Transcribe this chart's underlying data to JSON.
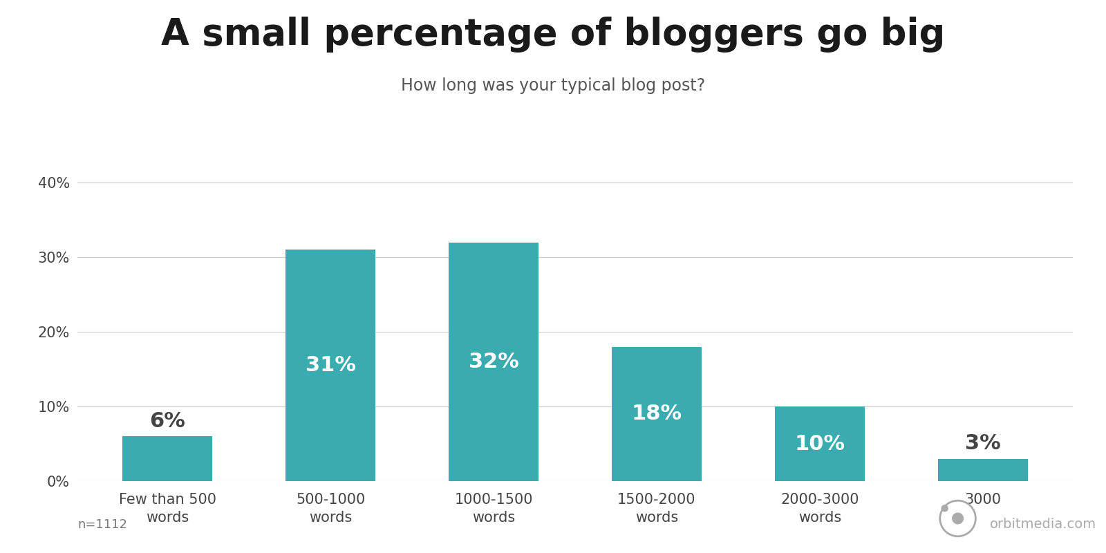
{
  "title": "A small percentage of bloggers go big",
  "subtitle": "How long was your typical blog post?",
  "categories": [
    "Few than 500\nwords",
    "500-1000\nwords",
    "1000-1500\nwords",
    "1500-2000\nwords",
    "2000-3000\nwords",
    "3000"
  ],
  "values": [
    6,
    31,
    32,
    18,
    10,
    3
  ],
  "labels": [
    "6%",
    "31%",
    "32%",
    "18%",
    "10%",
    "3%"
  ],
  "bar_color": "#3aabaf",
  "label_color_inside": "#ffffff",
  "label_color_outside": "#444444",
  "title_fontsize": 38,
  "subtitle_fontsize": 17,
  "label_fontsize": 22,
  "tick_fontsize": 15,
  "ylim": [
    0,
    43
  ],
  "yticks": [
    0,
    10,
    20,
    30,
    40
  ],
  "ytick_labels": [
    "0%",
    "10%",
    "20%",
    "30%",
    "40%"
  ],
  "footnote": "n=1112",
  "watermark": "orbitmedia.com",
  "background_color": "#ffffff",
  "grid_color": "#cccccc",
  "title_color": "#1a1a1a",
  "subtitle_color": "#555555",
  "tick_color": "#444444",
  "footnote_color": "#777777",
  "watermark_color": "#aaaaaa"
}
